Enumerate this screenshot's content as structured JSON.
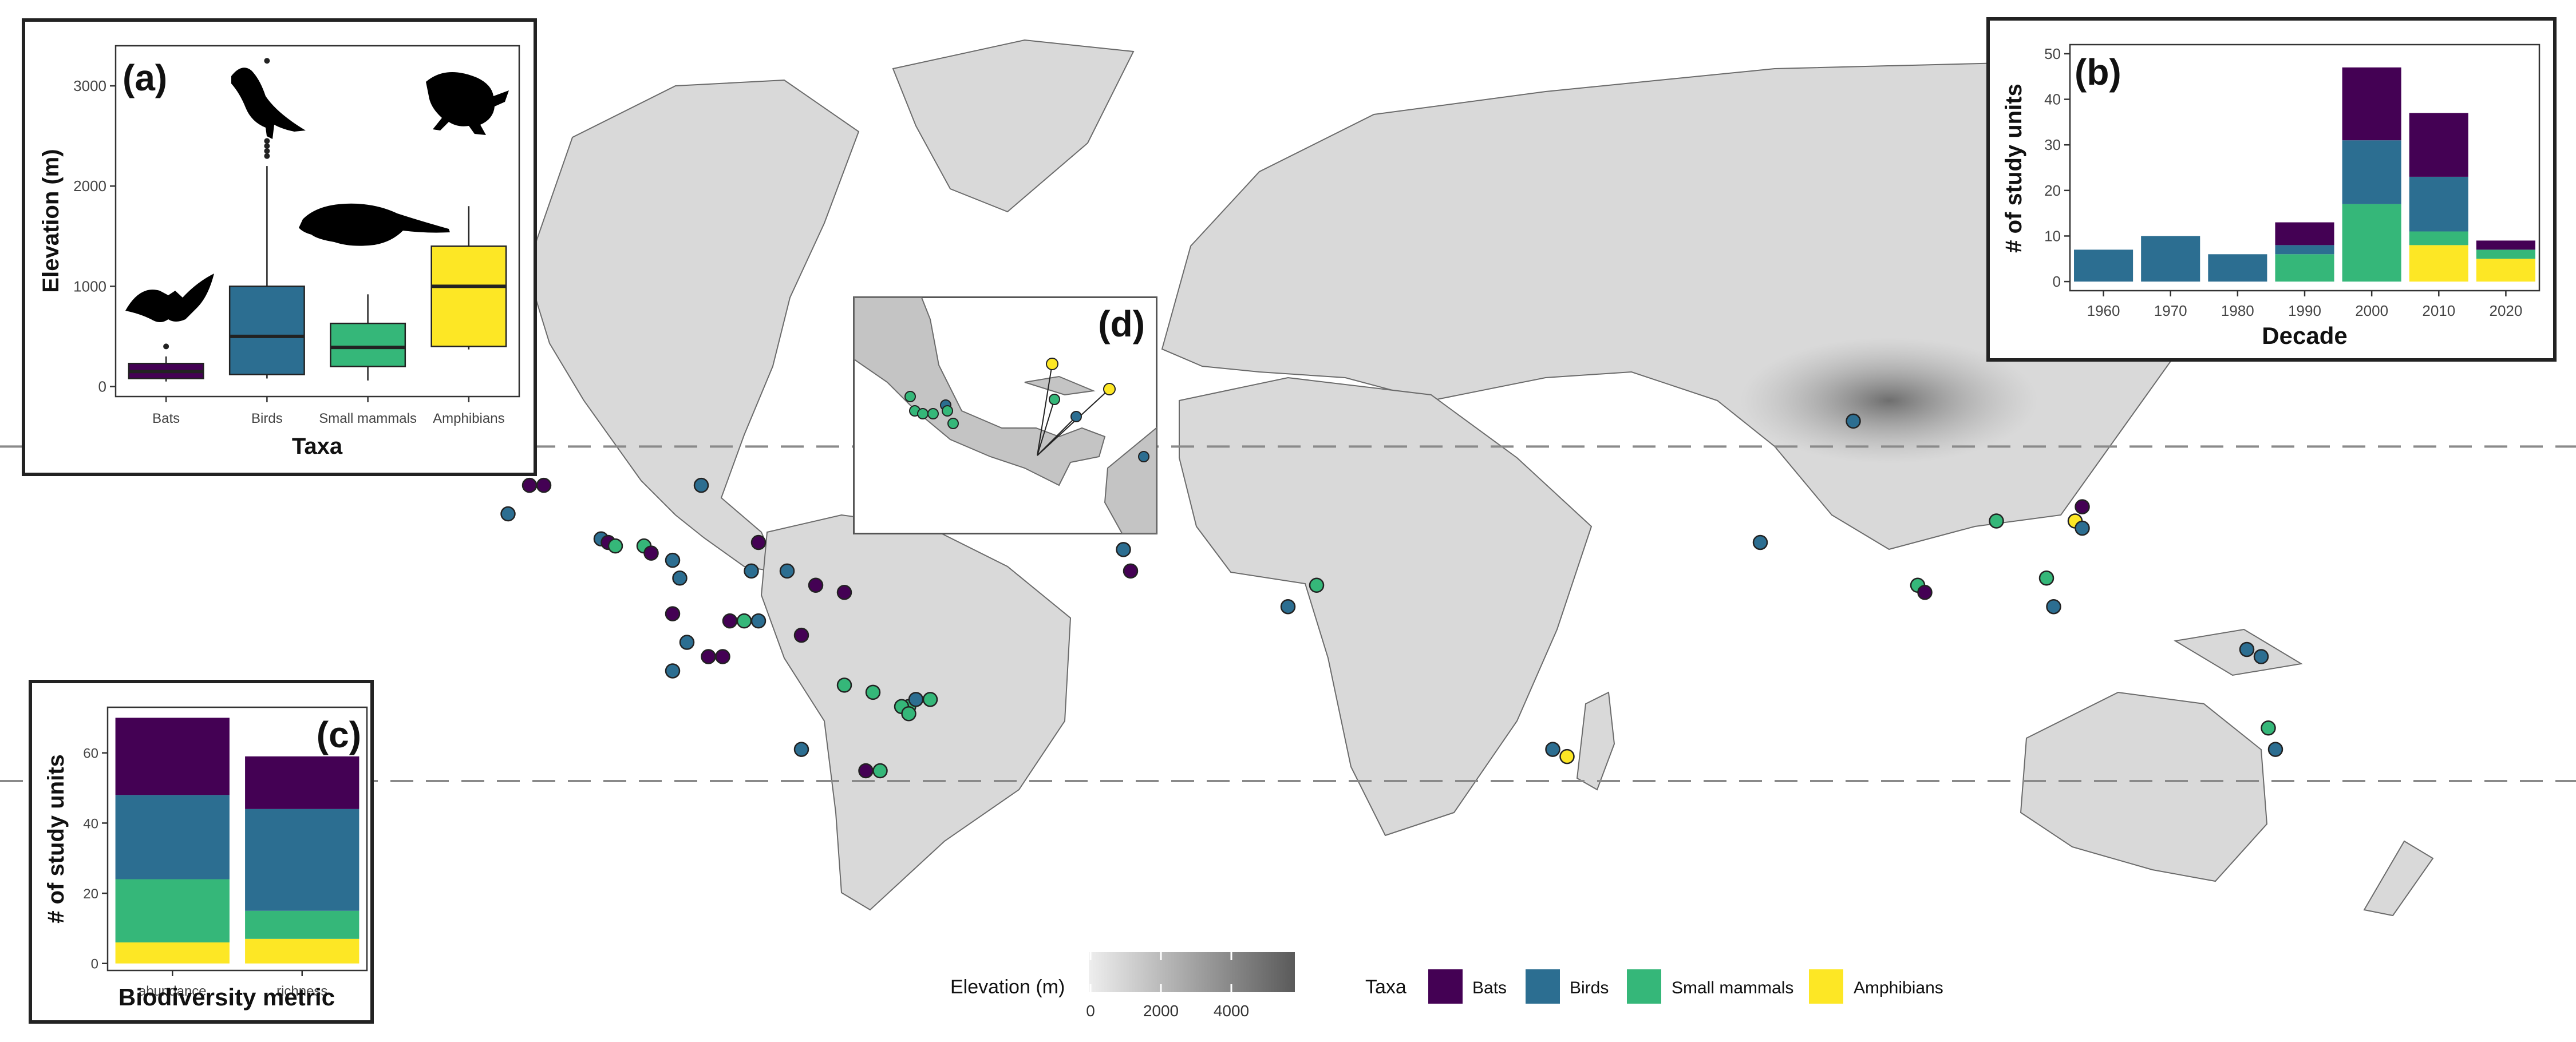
{
  "legend": {
    "elevation_title": "Elevation (m)",
    "elevation_ticks": [
      "0",
      "2000",
      "4000"
    ],
    "taxa_title": "Taxa",
    "taxa": [
      {
        "name": "Bats",
        "color": "#440154"
      },
      {
        "name": "Birds",
        "color": "#2c6e91"
      },
      {
        "name": "Small mammals",
        "color": "#35b779"
      },
      {
        "name": "Amphibians",
        "color": "#fde725"
      }
    ]
  },
  "inset_d": {
    "label": "(d)"
  },
  "chart_data": [
    {
      "panel": "(a)",
      "type": "box",
      "xlabel": "Taxa",
      "ylabel": "Elevation (m)",
      "ylim": [
        -100,
        3400
      ],
      "yticks": [
        0,
        1000,
        2000,
        3000
      ],
      "grid": false,
      "categories": [
        "Bats",
        "Birds",
        "Small mammals",
        "Amphibians"
      ],
      "colors": [
        "#440154",
        "#2c6e91",
        "#35b779",
        "#fde725"
      ],
      "boxes": [
        {
          "min": 50,
          "q1": 80,
          "median": 150,
          "q3": 230,
          "max": 300,
          "outliers": [
            400
          ]
        },
        {
          "min": 80,
          "q1": 120,
          "median": 500,
          "q3": 1000,
          "max": 2200,
          "outliers": [
            2300,
            2350,
            2400,
            2450,
            3250
          ]
        },
        {
          "min": 60,
          "q1": 200,
          "median": 390,
          "q3": 630,
          "max": 920,
          "outliers": []
        },
        {
          "min": 370,
          "q1": 400,
          "median": 1000,
          "q3": 1400,
          "max": 1800,
          "outliers": []
        }
      ]
    },
    {
      "panel": "(b)",
      "type": "bar",
      "stacked": true,
      "xlabel": "Decade",
      "ylabel": "# of study units",
      "ylim": [
        -2,
        52
      ],
      "yticks": [
        0,
        10,
        20,
        30,
        40,
        50
      ],
      "categories": [
        "1960",
        "1970",
        "1980",
        "1990",
        "2000",
        "2010",
        "2020"
      ],
      "series": [
        {
          "name": "Amphibians",
          "color": "#fde725",
          "values": [
            0,
            0,
            0,
            0,
            0,
            8,
            5
          ]
        },
        {
          "name": "Small mammals",
          "color": "#35b779",
          "values": [
            0,
            0,
            0,
            6,
            17,
            3,
            2
          ]
        },
        {
          "name": "Birds",
          "color": "#2c6e91",
          "values": [
            7,
            10,
            6,
            2,
            14,
            12,
            0
          ]
        },
        {
          "name": "Bats",
          "color": "#440154",
          "values": [
            0,
            0,
            0,
            5,
            16,
            14,
            2
          ]
        }
      ]
    },
    {
      "panel": "(c)",
      "type": "bar",
      "stacked": true,
      "xlabel": "Biodiversity metric",
      "ylabel": "# of study units",
      "ylim": [
        -2,
        73
      ],
      "yticks": [
        0,
        20,
        40,
        60
      ],
      "categories": [
        "abundance",
        "richness"
      ],
      "series": [
        {
          "name": "Amphibians",
          "color": "#fde725",
          "values": [
            6,
            7
          ]
        },
        {
          "name": "Small mammals",
          "color": "#35b779",
          "values": [
            18,
            8
          ]
        },
        {
          "name": "Birds",
          "color": "#2c6e91",
          "values": [
            24,
            29
          ]
        },
        {
          "name": "Bats",
          "color": "#440154",
          "values": [
            22,
            15
          ]
        }
      ]
    },
    {
      "panel": "map",
      "type": "scatter",
      "x_unit": "longitude",
      "y_unit": "latitude",
      "xlim": [
        -170,
        190
      ],
      "ylim": [
        -60,
        84
      ],
      "tropics_lat": [
        23.44,
        -23.44
      ],
      "points": [
        {
          "lon": -96,
          "lat": 18,
          "taxon": "Bats"
        },
        {
          "lon": -94,
          "lat": 18,
          "taxon": "Bats"
        },
        {
          "lon": -99,
          "lat": 14,
          "taxon": "Birds"
        },
        {
          "lon": -72,
          "lat": 18,
          "taxon": "Birds"
        },
        {
          "lon": -86,
          "lat": 10.5,
          "taxon": "Birds"
        },
        {
          "lon": -85,
          "lat": 10,
          "taxon": "Bats"
        },
        {
          "lon": -84,
          "lat": 9.5,
          "taxon": "Small mammals"
        },
        {
          "lon": -80,
          "lat": 9.5,
          "taxon": "Small mammals"
        },
        {
          "lon": -79,
          "lat": 8.5,
          "taxon": "Bats"
        },
        {
          "lon": -76,
          "lat": 7.5,
          "taxon": "Birds"
        },
        {
          "lon": -75,
          "lat": 5,
          "taxon": "Birds"
        },
        {
          "lon": -64,
          "lat": 10,
          "taxon": "Bats"
        },
        {
          "lon": -65,
          "lat": 6,
          "taxon": "Birds"
        },
        {
          "lon": -60,
          "lat": 6,
          "taxon": "Birds"
        },
        {
          "lon": -56,
          "lat": 4,
          "taxon": "Bats"
        },
        {
          "lon": -52,
          "lat": 3,
          "taxon": "Bats"
        },
        {
          "lon": -76,
          "lat": 0,
          "taxon": "Bats"
        },
        {
          "lon": -68,
          "lat": -1,
          "taxon": "Bats"
        },
        {
          "lon": -66,
          "lat": -1,
          "taxon": "Small mammals"
        },
        {
          "lon": -64,
          "lat": -1,
          "taxon": "Birds"
        },
        {
          "lon": -58,
          "lat": -3,
          "taxon": "Bats"
        },
        {
          "lon": -74,
          "lat": -4,
          "taxon": "Birds"
        },
        {
          "lon": -71,
          "lat": -6,
          "taxon": "Bats"
        },
        {
          "lon": -69,
          "lat": -6,
          "taxon": "Bats"
        },
        {
          "lon": -76,
          "lat": -8,
          "taxon": "Birds"
        },
        {
          "lon": -52,
          "lat": -10,
          "taxon": "Small mammals"
        },
        {
          "lon": -48,
          "lat": -11,
          "taxon": "Small mammals"
        },
        {
          "lon": -43,
          "lat": -13,
          "taxon": "Small mammals"
        },
        {
          "lon": -44,
          "lat": -13,
          "taxon": "Small mammals"
        },
        {
          "lon": -40,
          "lat": -12,
          "taxon": "Small mammals"
        },
        {
          "lon": -42,
          "lat": -12,
          "taxon": "Birds"
        },
        {
          "lon": -43,
          "lat": -14,
          "taxon": "Small mammals"
        },
        {
          "lon": -58,
          "lat": -19,
          "taxon": "Birds"
        },
        {
          "lon": -49,
          "lat": -22,
          "taxon": "Bats"
        },
        {
          "lon": -47,
          "lat": -22,
          "taxon": "Small mammals"
        },
        {
          "lon": -13,
          "lat": 9,
          "taxon": "Birds"
        },
        {
          "lon": -12,
          "lat": 6,
          "taxon": "Bats"
        },
        {
          "lon": 10,
          "lat": 1,
          "taxon": "Birds"
        },
        {
          "lon": 14,
          "lat": 4,
          "taxon": "Small mammals"
        },
        {
          "lon": 47,
          "lat": -19,
          "taxon": "Birds"
        },
        {
          "lon": 49,
          "lat": -20,
          "taxon": "Amphibians"
        },
        {
          "lon": 76,
          "lat": 10,
          "taxon": "Birds"
        },
        {
          "lon": 89,
          "lat": 27,
          "taxon": "Birds"
        },
        {
          "lon": 98,
          "lat": 4,
          "taxon": "Small mammals"
        },
        {
          "lon": 99,
          "lat": 3,
          "taxon": "Bats"
        },
        {
          "lon": 109,
          "lat": 13,
          "taxon": "Small mammals"
        },
        {
          "lon": 116,
          "lat": 5,
          "taxon": "Small mammals"
        },
        {
          "lon": 117,
          "lat": 1,
          "taxon": "Birds"
        },
        {
          "lon": 121,
          "lat": 15,
          "taxon": "Bats"
        },
        {
          "lon": 120,
          "lat": 13,
          "taxon": "Amphibians"
        },
        {
          "lon": 121,
          "lat": 12,
          "taxon": "Birds"
        },
        {
          "lon": 144,
          "lat": -5,
          "taxon": "Birds"
        },
        {
          "lon": 146,
          "lat": -6,
          "taxon": "Birds"
        },
        {
          "lon": 147,
          "lat": -16,
          "taxon": "Small mammals"
        },
        {
          "lon": 148,
          "lat": -19,
          "taxon": "Birds"
        }
      ]
    }
  ]
}
